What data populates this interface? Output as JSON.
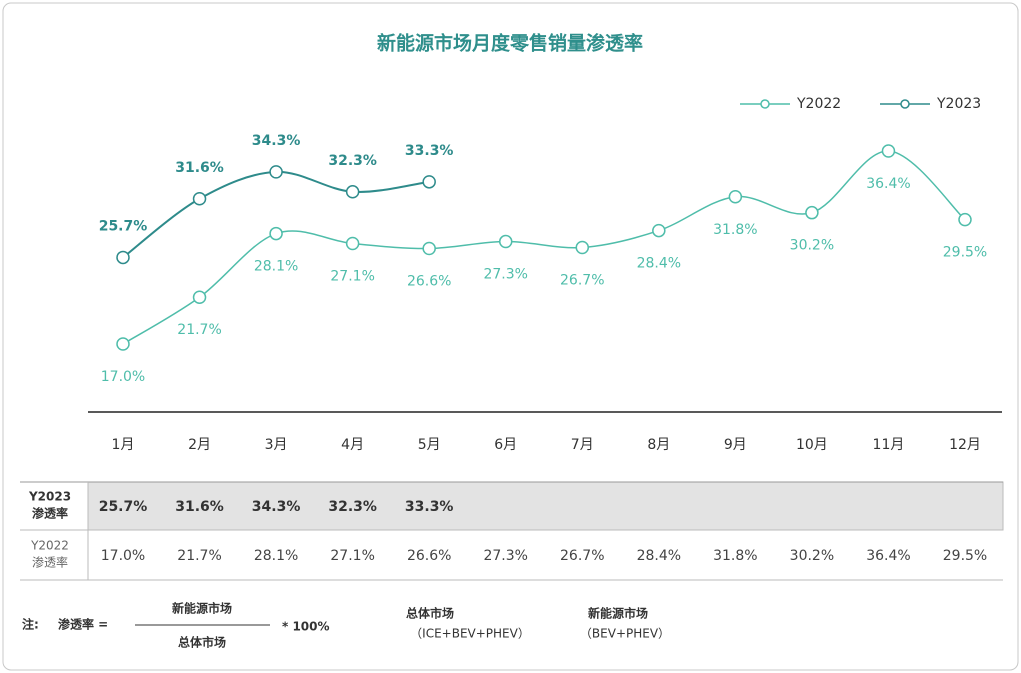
{
  "chart_data": {
    "type": "line",
    "title": "新能源市场月度零售销量渗透率",
    "categories": [
      "1月",
      "2月",
      "3月",
      "4月",
      "5月",
      "6月",
      "7月",
      "8月",
      "9月",
      "10月",
      "11月",
      "12月"
    ],
    "series": [
      {
        "name": "Y2022",
        "color": "#4fbdaa",
        "values": [
          17.0,
          21.7,
          28.1,
          27.1,
          26.6,
          27.3,
          26.7,
          28.4,
          31.8,
          30.2,
          36.4,
          29.5
        ],
        "value_labels": [
          "17.0%",
          "21.7%",
          "28.1%",
          "27.1%",
          "26.6%",
          "27.3%",
          "26.7%",
          "28.4%",
          "31.8%",
          "30.2%",
          "36.4%",
          "29.5%"
        ]
      },
      {
        "name": "Y2023",
        "color": "#2e8b8b",
        "values": [
          25.7,
          31.6,
          34.3,
          32.3,
          33.3,
          null,
          null,
          null,
          null,
          null,
          null,
          null
        ],
        "value_labels": [
          "25.7%",
          "31.6%",
          "34.3%",
          "32.3%",
          "33.3%",
          null,
          null,
          null,
          null,
          null,
          null,
          null
        ]
      }
    ],
    "legend": "top-right",
    "table_label": "渗透率",
    "note": {
      "prefix": "注:",
      "lhs": "渗透率 =",
      "numerator": "新能源市场",
      "denominator": "总体市场",
      "factor": "* 100%",
      "def1_name": "总体市场",
      "def1_detail": "（ICE+BEV+PHEV）",
      "def2_name": "新能源市场",
      "def2_detail": "（BEV+PHEV）"
    }
  }
}
